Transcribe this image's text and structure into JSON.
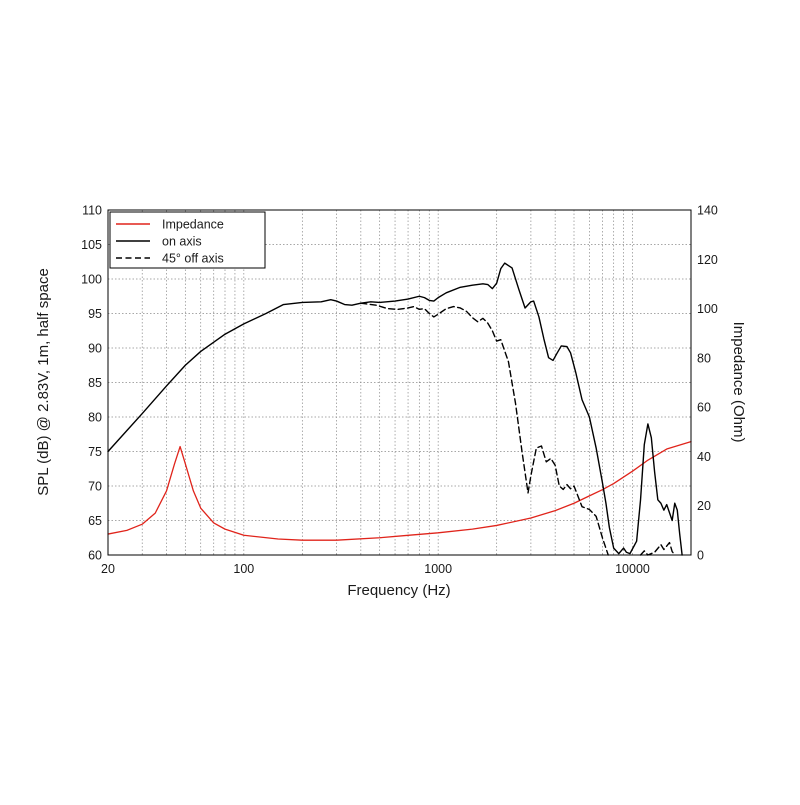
{
  "chart_data": {
    "type": "line",
    "xlabel": "Frequency (Hz)",
    "ylabel": "SPL (dB) @ 2.83V, 1m, half space",
    "y2label": "Impedance (Ohm)",
    "xscale": "log",
    "xlim": [
      20,
      20000
    ],
    "ylim": [
      60,
      110
    ],
    "y2lim": [
      0,
      140
    ],
    "grid": true,
    "legend_position": "top-left",
    "x_tick_labels": [
      "20",
      "100",
      "1000",
      "10000"
    ],
    "x_ticks": [
      20,
      100,
      1000,
      10000
    ],
    "y_ticks": [
      60,
      65,
      70,
      75,
      80,
      85,
      90,
      95,
      100,
      105,
      110
    ],
    "y_tick_labels": [
      "60",
      "65",
      "70",
      "75",
      "80",
      "85",
      "90",
      "95",
      "100",
      "105",
      "110"
    ],
    "y2_ticks": [
      0,
      20,
      40,
      60,
      80,
      100,
      120,
      140
    ],
    "y2_tick_labels": [
      "0",
      "20",
      "40",
      "60",
      "80",
      "100",
      "120",
      "140"
    ],
    "series": [
      {
        "name": "Impedance",
        "axis": "right",
        "color": "#e0241b",
        "style": "solid",
        "points": [
          [
            20,
            8.5
          ],
          [
            25,
            10
          ],
          [
            30,
            12.5
          ],
          [
            35,
            17
          ],
          [
            40,
            26
          ],
          [
            44,
            37
          ],
          [
            47,
            44
          ],
          [
            50,
            37
          ],
          [
            55,
            26
          ],
          [
            60,
            19
          ],
          [
            70,
            13
          ],
          [
            80,
            10.5
          ],
          [
            100,
            8
          ],
          [
            150,
            6.5
          ],
          [
            200,
            6
          ],
          [
            300,
            6
          ],
          [
            500,
            7
          ],
          [
            700,
            8
          ],
          [
            1000,
            9
          ],
          [
            1500,
            10.5
          ],
          [
            2000,
            12
          ],
          [
            3000,
            15
          ],
          [
            4000,
            18
          ],
          [
            5000,
            21
          ],
          [
            6000,
            24
          ],
          [
            7000,
            26.5
          ],
          [
            8000,
            29
          ],
          [
            10000,
            34
          ],
          [
            12000,
            38.5
          ],
          [
            15000,
            43
          ],
          [
            20000,
            46
          ]
        ]
      },
      {
        "name": "on axis",
        "axis": "left",
        "color": "#000000",
        "style": "solid",
        "points": [
          [
            20,
            75
          ],
          [
            30,
            80.5
          ],
          [
            40,
            84.5
          ],
          [
            50,
            87.5
          ],
          [
            60,
            89.5
          ],
          [
            80,
            92
          ],
          [
            100,
            93.5
          ],
          [
            130,
            95
          ],
          [
            160,
            96.3
          ],
          [
            200,
            96.6
          ],
          [
            250,
            96.7
          ],
          [
            280,
            97
          ],
          [
            300,
            96.8
          ],
          [
            330,
            96.3
          ],
          [
            360,
            96.2
          ],
          [
            400,
            96.5
          ],
          [
            450,
            96.7
          ],
          [
            500,
            96.6
          ],
          [
            600,
            96.8
          ],
          [
            700,
            97.1
          ],
          [
            800,
            97.5
          ],
          [
            850,
            97.3
          ],
          [
            900,
            96.9
          ],
          [
            950,
            96.8
          ],
          [
            1000,
            97.3
          ],
          [
            1100,
            98
          ],
          [
            1300,
            98.8
          ],
          [
            1500,
            99.1
          ],
          [
            1700,
            99.3
          ],
          [
            1800,
            99.2
          ],
          [
            1900,
            98.6
          ],
          [
            2000,
            99.4
          ],
          [
            2100,
            101.5
          ],
          [
            2200,
            102.3
          ],
          [
            2400,
            101.6
          ],
          [
            2600,
            98.5
          ],
          [
            2800,
            95.8
          ],
          [
            3000,
            96.7
          ],
          [
            3100,
            96.8
          ],
          [
            3300,
            94.5
          ],
          [
            3500,
            91.3
          ],
          [
            3700,
            88.6
          ],
          [
            3900,
            88.2
          ],
          [
            4100,
            89.3
          ],
          [
            4300,
            90.3
          ],
          [
            4600,
            90.2
          ],
          [
            4800,
            89.3
          ],
          [
            5100,
            86.5
          ],
          [
            5500,
            82.5
          ],
          [
            6000,
            80
          ],
          [
            6500,
            75.5
          ],
          [
            7000,
            70.5
          ],
          [
            7300,
            67.5
          ],
          [
            7600,
            64
          ],
          [
            8000,
            61
          ],
          [
            8500,
            60.2
          ],
          [
            9000,
            61
          ],
          [
            9300,
            60.4
          ],
          [
            9700,
            60.2
          ],
          [
            10500,
            62
          ],
          [
            11000,
            68
          ],
          [
            11500,
            76
          ],
          [
            12000,
            79
          ],
          [
            12500,
            77
          ],
          [
            13000,
            72
          ],
          [
            13500,
            68
          ],
          [
            14000,
            67.5
          ],
          [
            14500,
            66.5
          ],
          [
            15000,
            67.3
          ],
          [
            16000,
            65
          ],
          [
            16500,
            67.5
          ],
          [
            17000,
            66.5
          ],
          [
            17500,
            63
          ],
          [
            18000,
            60
          ]
        ]
      },
      {
        "name": "45° off axis",
        "axis": "left",
        "color": "#000000",
        "style": "dashed",
        "points": [
          [
            400,
            96.5
          ],
          [
            480,
            96.2
          ],
          [
            550,
            95.7
          ],
          [
            620,
            95.6
          ],
          [
            700,
            95.8
          ],
          [
            750,
            96
          ],
          [
            800,
            95.6
          ],
          [
            850,
            95.7
          ],
          [
            900,
            95
          ],
          [
            950,
            94.5
          ],
          [
            1000,
            94.9
          ],
          [
            1100,
            95.7
          ],
          [
            1200,
            96
          ],
          [
            1300,
            95.8
          ],
          [
            1400,
            95.3
          ],
          [
            1500,
            94.4
          ],
          [
            1600,
            93.8
          ],
          [
            1700,
            94.3
          ],
          [
            1800,
            93.6
          ],
          [
            1900,
            92.5
          ],
          [
            2000,
            91
          ],
          [
            2100,
            91.2
          ],
          [
            2300,
            88
          ],
          [
            2500,
            82
          ],
          [
            2700,
            75
          ],
          [
            2900,
            69
          ],
          [
            3000,
            71.5
          ],
          [
            3200,
            75.5
          ],
          [
            3400,
            75.8
          ],
          [
            3600,
            73.5
          ],
          [
            3800,
            74
          ],
          [
            4000,
            73
          ],
          [
            4200,
            70
          ],
          [
            4400,
            69.5
          ],
          [
            4600,
            70.2
          ],
          [
            4800,
            69.6
          ],
          [
            5000,
            70
          ],
          [
            5500,
            67
          ],
          [
            6000,
            66.6
          ],
          [
            6500,
            65.6
          ],
          [
            7000,
            62.5
          ],
          [
            7500,
            60
          ]
        ]
      },
      {
        "name": "",
        "axis": "left",
        "color": "#000000",
        "style": "dashed",
        "points": [
          [
            11000,
            60
          ],
          [
            11500,
            60.6
          ],
          [
            12000,
            60
          ],
          [
            13000,
            60.4
          ],
          [
            14000,
            61.5
          ],
          [
            14500,
            60.8
          ],
          [
            15000,
            61.3
          ],
          [
            15500,
            61.8
          ],
          [
            16000,
            60.5
          ],
          [
            16500,
            60
          ]
        ]
      }
    ]
  }
}
